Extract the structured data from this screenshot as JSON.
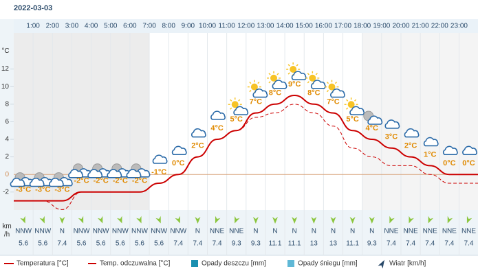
{
  "chart_data": {
    "type": "line",
    "title": "2022-03-03",
    "categories": [
      null,
      "1:00",
      "2:00",
      "3:00",
      "4:00",
      "5:00",
      "6:00",
      "7:00",
      "8:00",
      "9:00",
      "10:00",
      "11:00",
      "12:00",
      "13:00",
      "14:00",
      "15:00",
      "16:00",
      "17:00",
      "18:00",
      "19:00",
      "20:00",
      "21:00",
      "22:00",
      "23:00"
    ],
    "y_unit": "°C",
    "ylim": [
      -4,
      16
    ],
    "yticks": [
      -2,
      0,
      2,
      4,
      6,
      8,
      10,
      12
    ],
    "series": [
      {
        "name": "Temperatura [°C]",
        "color": "#cc0000",
        "values": [
          -3,
          -3,
          -3,
          -2,
          -2,
          -2,
          -2,
          -1,
          0,
          2,
          4,
          5,
          7,
          8,
          9,
          8,
          7,
          5,
          4,
          3,
          2,
          1,
          0,
          0
        ],
        "value_labels": [
          "-3°C",
          "-3°C",
          "-3°C",
          "-2°C",
          "-2°C",
          "-2°C",
          "-2°C",
          "-1°C",
          "0°C",
          "2°C",
          "4°C",
          "5°C",
          "7°C",
          "8°C",
          "9°C",
          "8°C",
          "7°C",
          "5°C",
          "4°C",
          "3°C",
          "2°C",
          "1°C",
          "0°C",
          "0°C"
        ]
      },
      {
        "name": "Temp. odczuwalna [°C]",
        "color": "#cc0000",
        "dashed": true,
        "values": [
          -3,
          -3,
          -4,
          -2,
          -2,
          -2,
          -2,
          -1,
          0,
          2,
          4,
          5,
          6.5,
          7,
          8,
          7,
          5.5,
          3,
          2,
          1,
          1,
          0,
          -1,
          -1
        ]
      }
    ],
    "legend_extra": [
      {
        "name": "Opady deszczu [mm]",
        "color": "#1a8fb0"
      },
      {
        "name": "Opady śniegu [mm]",
        "color": "#5fb8d6"
      }
    ],
    "wind": {
      "name": "Wiatr [km/h]",
      "unit": [
        "km",
        "/h"
      ],
      "color": "#8cc63f",
      "directions": [
        "NNW",
        "NNW",
        "N",
        "NNW",
        "NNW",
        "NNW",
        "NNW",
        "NNW",
        "NNW",
        "N",
        "NNE",
        "NNE",
        "N",
        "N",
        "N",
        "N",
        "N",
        "N",
        "N",
        "NNE",
        "NNE",
        "NNE",
        "NNE",
        "NNE"
      ],
      "speeds": [
        5.6,
        5.6,
        7.4,
        5.6,
        5.6,
        5.6,
        5.6,
        5.6,
        7.4,
        7.4,
        7.4,
        9.3,
        9.3,
        11.1,
        11.1,
        13,
        13,
        11.1,
        9.3,
        7.4,
        7.4,
        7.4,
        7.4,
        7.4
      ]
    }
  }
}
